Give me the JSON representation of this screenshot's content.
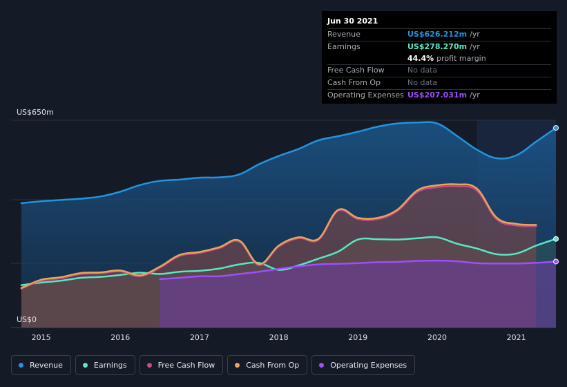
{
  "tooltip": {
    "date": "Jun 30 2021",
    "rows": [
      {
        "label": "Revenue",
        "value": "US$626.212m",
        "unit": "/yr",
        "color": "#2394df"
      },
      {
        "label": "Earnings",
        "value": "US$278.270m",
        "unit": "/yr",
        "color": "#58e8c5"
      },
      {
        "label": "",
        "value": "44.4%",
        "unit": "profit margin",
        "color": "#ffffff"
      },
      {
        "label": "Free Cash Flow",
        "value": "No data"
      },
      {
        "label": "Cash From Op",
        "value": "No data"
      },
      {
        "label": "Operating Expenses",
        "value": "US$207.031m",
        "unit": "/yr",
        "color": "#a04dff"
      }
    ]
  },
  "legend": [
    {
      "label": "Revenue",
      "color": "#2394df"
    },
    {
      "label": "Earnings",
      "color": "#58e8c5"
    },
    {
      "label": "Free Cash Flow",
      "color": "#c94c82"
    },
    {
      "label": "Cash From Op",
      "color": "#e7a65a"
    },
    {
      "label": "Operating Expenses",
      "color": "#a04dff"
    }
  ],
  "chart_data": {
    "type": "area",
    "ylim": [
      0,
      650
    ],
    "y_tick_labels": {
      "top": "US$650m",
      "bottom": "US$0"
    },
    "xlim": [
      2014.62,
      2021.5
    ],
    "x_ticks": [
      "2015",
      "2016",
      "2017",
      "2018",
      "2019",
      "2020",
      "2021"
    ],
    "forecast_shade_start": 2020.5,
    "series": [
      {
        "name": "Revenue",
        "color": "#2394df",
        "points": [
          [
            2014.75,
            390
          ],
          [
            2015.0,
            396
          ],
          [
            2015.25,
            400
          ],
          [
            2015.5,
            404
          ],
          [
            2015.75,
            411
          ],
          [
            2016.0,
            426
          ],
          [
            2016.25,
            447
          ],
          [
            2016.5,
            460
          ],
          [
            2016.75,
            464
          ],
          [
            2017.0,
            470
          ],
          [
            2017.25,
            471
          ],
          [
            2017.5,
            480
          ],
          [
            2017.75,
            512
          ],
          [
            2018.0,
            538
          ],
          [
            2018.25,
            560
          ],
          [
            2018.5,
            587
          ],
          [
            2018.75,
            600
          ],
          [
            2019.0,
            614
          ],
          [
            2019.25,
            630
          ],
          [
            2019.5,
            640
          ],
          [
            2019.75,
            643
          ],
          [
            2020.0,
            640
          ],
          [
            2020.25,
            601
          ],
          [
            2020.5,
            558
          ],
          [
            2020.75,
            531
          ],
          [
            2021.0,
            540
          ],
          [
            2021.25,
            583
          ],
          [
            2021.5,
            626
          ]
        ]
      },
      {
        "name": "Earnings",
        "color": "#58e8c5",
        "points": [
          [
            2014.75,
            133
          ],
          [
            2015.0,
            141
          ],
          [
            2015.25,
            147
          ],
          [
            2015.5,
            156
          ],
          [
            2015.75,
            159
          ],
          [
            2016.0,
            165
          ],
          [
            2016.25,
            172
          ],
          [
            2016.5,
            168
          ],
          [
            2016.75,
            175
          ],
          [
            2017.0,
            178
          ],
          [
            2017.25,
            185
          ],
          [
            2017.5,
            198
          ],
          [
            2017.75,
            203
          ],
          [
            2018.0,
            181
          ],
          [
            2018.25,
            195
          ],
          [
            2018.5,
            216
          ],
          [
            2018.75,
            238
          ],
          [
            2019.0,
            276
          ],
          [
            2019.25,
            277
          ],
          [
            2019.5,
            276
          ],
          [
            2019.75,
            280
          ],
          [
            2020.0,
            283
          ],
          [
            2020.25,
            263
          ],
          [
            2020.5,
            248
          ],
          [
            2020.75,
            230
          ],
          [
            2021.0,
            232
          ],
          [
            2021.25,
            257
          ],
          [
            2021.5,
            278
          ]
        ]
      },
      {
        "name": "Free Cash Flow",
        "color": "#c94c82",
        "points": [
          [
            2014.75,
            122
          ],
          [
            2015.0,
            147
          ],
          [
            2015.25,
            155
          ],
          [
            2015.5,
            168
          ],
          [
            2015.75,
            170
          ],
          [
            2016.0,
            176
          ],
          [
            2016.25,
            161
          ],
          [
            2016.5,
            188
          ],
          [
            2016.75,
            225
          ],
          [
            2017.0,
            234
          ],
          [
            2017.25,
            249
          ],
          [
            2017.5,
            270
          ],
          [
            2017.75,
            196
          ],
          [
            2018.0,
            254
          ],
          [
            2018.25,
            280
          ],
          [
            2018.5,
            275
          ],
          [
            2018.75,
            366
          ],
          [
            2019.0,
            340
          ],
          [
            2019.25,
            340
          ],
          [
            2019.5,
            366
          ],
          [
            2019.75,
            425
          ],
          [
            2020.0,
            440
          ],
          [
            2020.25,
            443
          ],
          [
            2020.5,
            430
          ],
          [
            2020.75,
            340
          ],
          [
            2021.0,
            320
          ],
          [
            2021.25,
            318
          ]
        ]
      },
      {
        "name": "Cash From Op",
        "color": "#e7a65a",
        "points": [
          [
            2014.75,
            124
          ],
          [
            2015.0,
            150
          ],
          [
            2015.25,
            158
          ],
          [
            2015.5,
            171
          ],
          [
            2015.75,
            173
          ],
          [
            2016.0,
            179
          ],
          [
            2016.25,
            164
          ],
          [
            2016.5,
            191
          ],
          [
            2016.75,
            228
          ],
          [
            2017.0,
            237
          ],
          [
            2017.25,
            252
          ],
          [
            2017.5,
            273
          ],
          [
            2017.75,
            199
          ],
          [
            2018.0,
            257
          ],
          [
            2018.25,
            283
          ],
          [
            2018.5,
            278
          ],
          [
            2018.75,
            369
          ],
          [
            2019.0,
            344
          ],
          [
            2019.25,
            344
          ],
          [
            2019.5,
            370
          ],
          [
            2019.75,
            430
          ],
          [
            2020.0,
            446
          ],
          [
            2020.25,
            449
          ],
          [
            2020.5,
            436
          ],
          [
            2020.75,
            345
          ],
          [
            2021.0,
            325
          ],
          [
            2021.25,
            322
          ]
        ]
      },
      {
        "name": "Operating Expenses",
        "color": "#a04dff",
        "points": [
          [
            2016.5,
            152
          ],
          [
            2016.75,
            156
          ],
          [
            2017.0,
            161
          ],
          [
            2017.25,
            161
          ],
          [
            2017.5,
            168
          ],
          [
            2017.75,
            175
          ],
          [
            2018.0,
            184
          ],
          [
            2018.25,
            192
          ],
          [
            2018.5,
            198
          ],
          [
            2018.75,
            200
          ],
          [
            2019.0,
            202
          ],
          [
            2019.25,
            205
          ],
          [
            2019.5,
            206
          ],
          [
            2019.75,
            209
          ],
          [
            2020.0,
            210
          ],
          [
            2020.25,
            208
          ],
          [
            2020.5,
            202
          ],
          [
            2020.75,
            201
          ],
          [
            2021.0,
            201
          ],
          [
            2021.25,
            203
          ],
          [
            2021.5,
            207
          ]
        ]
      }
    ]
  }
}
